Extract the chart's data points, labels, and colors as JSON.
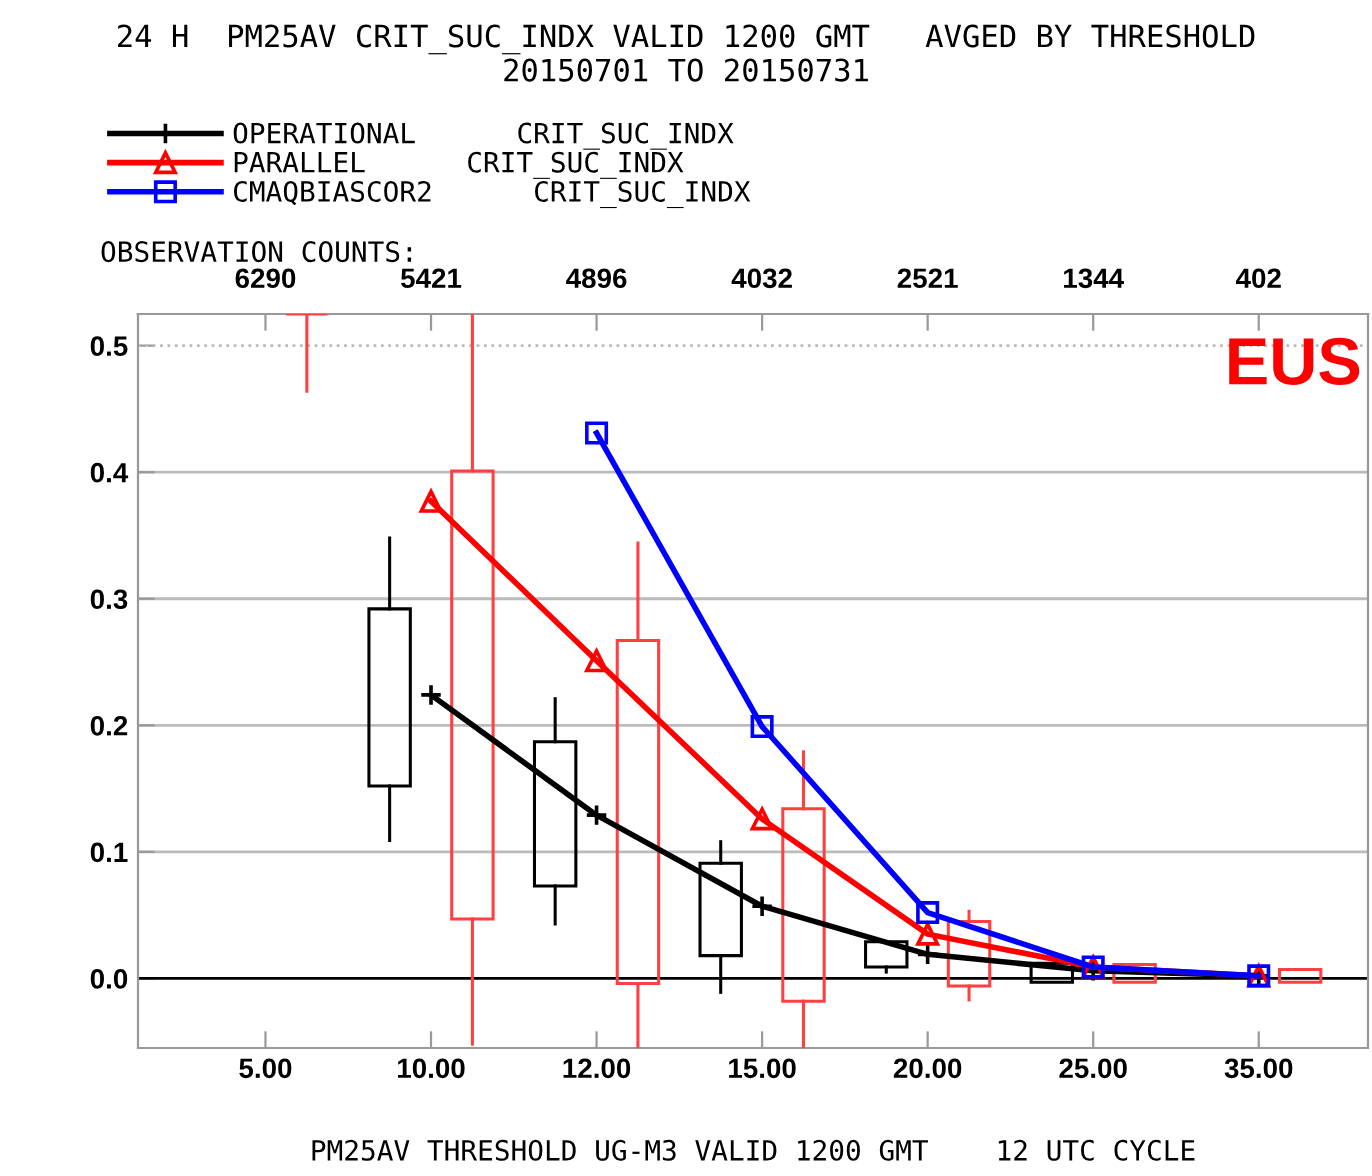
{
  "chart_data": {
    "type": "line",
    "title": "24 H  PM25AV CRIT_SUC_INDX VALID 1200 GMT   AVGED BY THRESHOLD\n20150701 TO 20150731",
    "xlabel": "PM25AV THRESHOLD UG-M3 VALID 1200 GMT    12 UTC CYCLE",
    "categories": [
      "5.00",
      "10.00",
      "12.00",
      "15.00",
      "20.00",
      "25.00",
      "35.00"
    ],
    "series": [
      {
        "name": "OPERATIONAL      CRIT_SUC_INDX",
        "color": "#000000",
        "marker": "cross",
        "values": [
          null,
          0.224,
          0.129,
          0.057,
          0.019,
          0.006,
          0.002
        ]
      },
      {
        "name": "PARALLEL      CRIT_SUC_INDX",
        "color": "#ff0000",
        "marker": "triangle",
        "values": [
          null,
          0.377,
          0.251,
          0.126,
          0.035,
          0.009,
          0.002
        ]
      },
      {
        "name": "CMAQBIASCOR2      CRIT_SUC_INDX",
        "color": "#0000ff",
        "marker": "square",
        "values": [
          null,
          null,
          0.431,
          0.199,
          0.052,
          0.009,
          0.002
        ]
      },
      {
        "type": "box",
        "color": "#000000",
        "boxes": [
          null,
          {
            "low": 0.109,
            "q1": 0.152,
            "q3": 0.292,
            "high": 0.348
          },
          {
            "low": 0.043,
            "q1": 0.073,
            "q3": 0.187,
            "high": 0.221
          },
          {
            "low": -0.011,
            "q1": 0.018,
            "q3": 0.091,
            "high": 0.108
          },
          {
            "low": 0.005,
            "q1": 0.009,
            "q3": 0.029,
            "high": 0.029
          },
          {
            "low": -0.003,
            "q1": -0.003,
            "q3": 0.012,
            "high": 0.012
          },
          null
        ]
      },
      {
        "type": "box",
        "color": "#ff4040",
        "boxes": [
          {
            "low": 0.464,
            "q1": 0.525,
            "q3": 0.525,
            "high": 0.525
          },
          {
            "low": -0.052,
            "q1": 0.047,
            "q3": 0.401,
            "high": 0.525
          },
          {
            "low": -0.055,
            "q1": -0.004,
            "q3": 0.267,
            "high": 0.344
          },
          {
            "low": -0.055,
            "q1": -0.018,
            "q3": 0.134,
            "high": 0.179
          },
          {
            "low": -0.017,
            "q1": -0.006,
            "q3": 0.045,
            "high": 0.053
          },
          {
            "low": -0.003,
            "q1": -0.003,
            "q3": 0.011,
            "high": 0.011
          },
          {
            "low": -0.003,
            "q1": -0.003,
            "q3": 0.007,
            "high": 0.007
          }
        ]
      }
    ],
    "ylim": [
      -0.055,
      0.525
    ],
    "yticks": [
      {
        "value": 0,
        "label": "0.0"
      },
      0.1,
      0.2,
      0.3,
      0.4,
      0.5
    ],
    "grid": "y",
    "legend": "top",
    "line_style": "solid",
    "ref_lines": [
      {
        "axis": "y",
        "value": 0,
        "color": "#000000"
      },
      {
        "axis": "y",
        "value": 0.5,
        "color": "#bbbbbb",
        "line_style": "dotted"
      }
    ],
    "annotations": [
      "OBSERVATION COUNTS:",
      "6290",
      "5421",
      "4896",
      "4032",
      "2521",
      "1344",
      "402",
      "EUS"
    ]
  }
}
